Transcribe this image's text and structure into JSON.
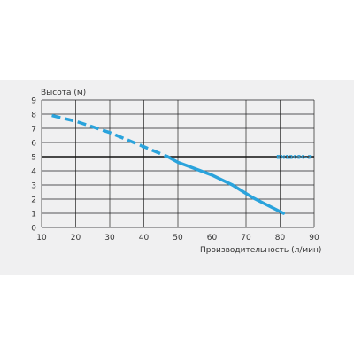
{
  "chart_data": {
    "type": "line",
    "ylabel": "Высота (м)",
    "xlabel": "Производительность (л/мин)",
    "x_ticks": [
      10,
      20,
      30,
      40,
      50,
      60,
      70,
      80,
      90
    ],
    "y_ticks": [
      0,
      1,
      2,
      3,
      4,
      5,
      6,
      7,
      8,
      9
    ],
    "xlim": [
      10,
      90
    ],
    "ylim": [
      0,
      9
    ],
    "grid": true,
    "series": [
      {
        "style": "dashed",
        "color": "#2aa3dc",
        "x": [
          13,
          20,
          30,
          40,
          47
        ],
        "y": [
          7.9,
          7.5,
          6.7,
          5.7,
          5.0
        ]
      },
      {
        "style": "solid",
        "color": "#2aa3dc",
        "x": [
          47,
          50,
          60,
          66,
          72,
          81
        ],
        "y": [
          5.0,
          4.6,
          3.7,
          3.0,
          2.1,
          1.0
        ]
      }
    ],
    "reference_line": {
      "y": 5,
      "label": "EN12050-3",
      "color": "#111111",
      "label_color": "#2aa3dc"
    }
  }
}
